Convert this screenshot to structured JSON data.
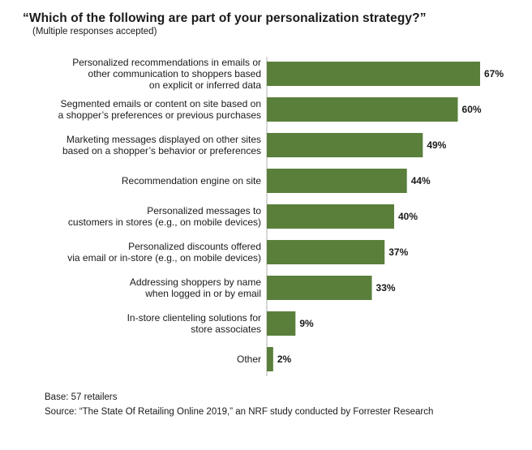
{
  "chart_data": {
    "type": "bar",
    "orientation": "horizontal",
    "title": "“Which of the following are part of your personalization strategy?”",
    "subtitle": "(Multiple responses accepted)",
    "categories": [
      [
        "Personalized recommendations in emails or",
        "other communication to shoppers based",
        "on explicit or inferred data"
      ],
      [
        "Segmented emails or content on site based on",
        "a shopper’s preferences or previous purchases"
      ],
      [
        "Marketing messages displayed on other sites",
        "based on a shopper’s behavior or preferences"
      ],
      [
        "Recommendation engine on site"
      ],
      [
        "Personalized messages to",
        "customers in stores (e.g., on mobile devices)"
      ],
      [
        "Personalized discounts offered",
        "via email or in-store (e.g., on mobile devices)"
      ],
      [
        "Addressing shoppers by name",
        "when logged in or by email"
      ],
      [
        "In-store clienteling solutions for",
        "store associates"
      ],
      [
        "Other"
      ]
    ],
    "values": [
      67,
      60,
      49,
      44,
      40,
      37,
      33,
      9,
      2
    ],
    "value_labels": [
      "67%",
      "60%",
      "49%",
      "44%",
      "40%",
      "37%",
      "33%",
      "9%",
      "2%"
    ],
    "unit": "%",
    "xlim": [
      0,
      67
    ],
    "grid": false,
    "legend": "none",
    "bar_color": "#5a7f3b"
  },
  "footer": {
    "base": "Base: 57 retailers",
    "source": "Source: “The State Of Retailing Online 2019,” an NRF study conducted by Forrester Research"
  }
}
